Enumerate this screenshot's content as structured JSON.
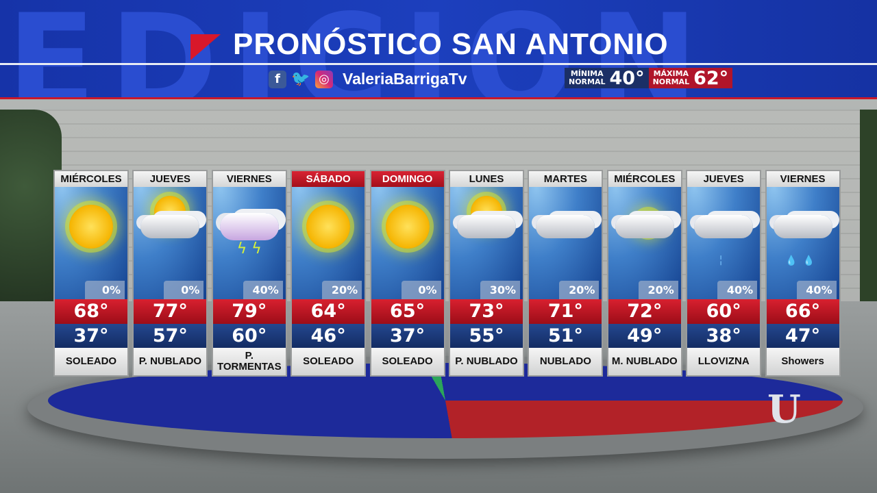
{
  "header": {
    "background_text": "EDICION",
    "title": "PRONÓSTICO SAN ANTONIO",
    "social_icons": [
      "facebook-icon",
      "twitter-icon",
      "instagram-icon"
    ],
    "handle": "ValeriaBarrigaTv",
    "min_normal": {
      "label_1": "MÍNIMA",
      "label_2": "NORMAL",
      "value": "40°",
      "color": "#1b2f66"
    },
    "max_normal": {
      "label_1": "MÁXIMA",
      "label_2": "NORMAL",
      "value": "62°",
      "color": "#b0152a"
    }
  },
  "colors": {
    "banner": "#1c3fbd",
    "high": "#c8182a",
    "low": "#1c3a7a",
    "weekend": "#c8182a"
  },
  "forecast": [
    {
      "day": "MIÉRCOLES",
      "weekend": false,
      "icon": "sun",
      "precip": "0%",
      "high": "68°",
      "low": "37°",
      "desc": "SOLEADO"
    },
    {
      "day": "JUEVES",
      "weekend": false,
      "icon": "partly-cloudy",
      "precip": "0%",
      "high": "77°",
      "low": "57°",
      "desc": "P. NUBLADO"
    },
    {
      "day": "VIERNES",
      "weekend": false,
      "icon": "thunderstorm",
      "precip": "40%",
      "high": "79°",
      "low": "60°",
      "desc": "P. TORMENTAS"
    },
    {
      "day": "SÁBADO",
      "weekend": true,
      "icon": "sun",
      "precip": "20%",
      "high": "64°",
      "low": "46°",
      "desc": "SOLEADO"
    },
    {
      "day": "DOMINGO",
      "weekend": true,
      "icon": "sun",
      "precip": "0%",
      "high": "65°",
      "low": "37°",
      "desc": "SOLEADO"
    },
    {
      "day": "LUNES",
      "weekend": false,
      "icon": "partly-cloudy",
      "precip": "30%",
      "high": "73°",
      "low": "55°",
      "desc": "P. NUBLADO"
    },
    {
      "day": "MARTES",
      "weekend": false,
      "icon": "cloudy",
      "precip": "20%",
      "high": "71°",
      "low": "51°",
      "desc": "NUBLADO"
    },
    {
      "day": "MIÉRCOLES",
      "weekend": false,
      "icon": "mostly-cloudy",
      "precip": "20%",
      "high": "72°",
      "low": "49°",
      "desc": "M. NUBLADO"
    },
    {
      "day": "JUEVES",
      "weekend": false,
      "icon": "drizzle",
      "precip": "40%",
      "high": "60°",
      "low": "38°",
      "desc": "LLOVIZNA"
    },
    {
      "day": "VIERNES",
      "weekend": false,
      "icon": "showers",
      "precip": "40%",
      "high": "66°",
      "low": "47°",
      "desc": "Showers"
    }
  ]
}
